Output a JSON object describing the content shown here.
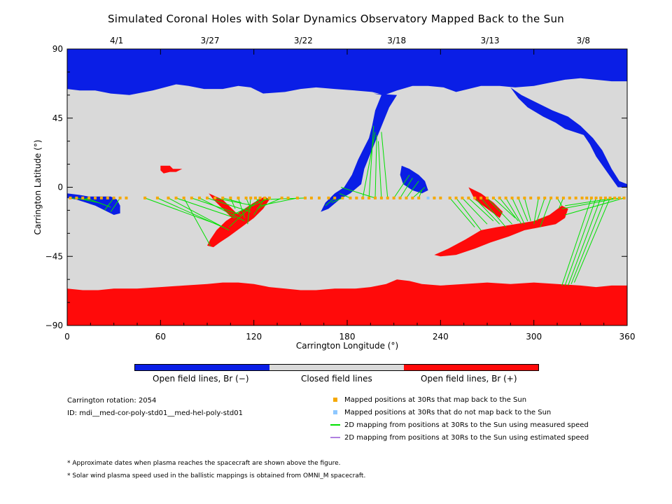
{
  "chart_data": {
    "type": "map",
    "title": "Simulated Coronal Holes with Solar Dynamics Observatory Mapped Back to the Sun",
    "xlabel": "Carrington Longitude (°)",
    "ylabel": "Carrington Latitude (°)",
    "xlim": [
      0,
      360
    ],
    "ylim": [
      -90,
      90
    ],
    "x_ticks": [
      0,
      60,
      120,
      180,
      240,
      300,
      360
    ],
    "y_ticks": [
      90,
      45,
      0,
      -45,
      -90
    ],
    "y_tick_labels": [
      "90",
      "45",
      "0",
      "−45",
      "−90"
    ],
    "top_axis_dates": [
      {
        "label": "4/1",
        "lon": 30
      },
      {
        "label": "3/27",
        "lon": 90
      },
      {
        "label": "3/22",
        "lon": 150
      },
      {
        "label": "3/18",
        "lon": 210
      },
      {
        "label": "3/13",
        "lon": 270
      },
      {
        "label": "3/8",
        "lon": 330
      }
    ],
    "colors": {
      "open_negative": "#0a1ee6",
      "closed": "#d9d9d9",
      "open_positive": "#ff0a0a",
      "mapped": "#f5a800",
      "unmapped": "#8ec8ff",
      "measured_line": "#00e000",
      "estimated_line": "#b080e0"
    },
    "regions": {
      "north_polar_boundary": [
        [
          0,
          64
        ],
        [
          8,
          63
        ],
        [
          18,
          63
        ],
        [
          28,
          61
        ],
        [
          40,
          60
        ],
        [
          55,
          63
        ],
        [
          70,
          67
        ],
        [
          78,
          66
        ],
        [
          88,
          64
        ],
        [
          100,
          64
        ],
        [
          110,
          66
        ],
        [
          118,
          65
        ],
        [
          126,
          61
        ],
        [
          140,
          62
        ],
        [
          150,
          64
        ],
        [
          160,
          65
        ],
        [
          172,
          64
        ],
        [
          185,
          63
        ],
        [
          196,
          62
        ],
        [
          204,
          60
        ],
        [
          212,
          63
        ],
        [
          222,
          66
        ],
        [
          232,
          66
        ],
        [
          242,
          65
        ],
        [
          250,
          62
        ],
        [
          258,
          64
        ],
        [
          266,
          66
        ],
        [
          278,
          66
        ],
        [
          288,
          65
        ],
        [
          300,
          66
        ],
        [
          310,
          68
        ],
        [
          320,
          70
        ],
        [
          330,
          71
        ],
        [
          340,
          70
        ],
        [
          350,
          69
        ],
        [
          360,
          69
        ]
      ],
      "south_polar_boundary": [
        [
          0,
          -66
        ],
        [
          10,
          -67
        ],
        [
          20,
          -67
        ],
        [
          30,
          -66
        ],
        [
          45,
          -66
        ],
        [
          60,
          -65
        ],
        [
          75,
          -64
        ],
        [
          90,
          -63
        ],
        [
          100,
          -62
        ],
        [
          110,
          -62
        ],
        [
          120,
          -63
        ],
        [
          130,
          -65
        ],
        [
          140,
          -66
        ],
        [
          150,
          -67
        ],
        [
          160,
          -67
        ],
        [
          172,
          -66
        ],
        [
          185,
          -66
        ],
        [
          195,
          -65
        ],
        [
          205,
          -63
        ],
        [
          212,
          -60
        ],
        [
          220,
          -61
        ],
        [
          228,
          -63
        ],
        [
          240,
          -64
        ],
        [
          255,
          -63
        ],
        [
          270,
          -62
        ],
        [
          285,
          -63
        ],
        [
          300,
          -62
        ],
        [
          315,
          -63
        ],
        [
          330,
          -64
        ],
        [
          340,
          -65
        ],
        [
          350,
          -64
        ],
        [
          360,
          -64
        ]
      ],
      "negative_holes": [
        [
          [
            197,
            61
          ],
          [
            202,
            60
          ],
          [
            198,
            50
          ],
          [
            196,
            40
          ],
          [
            194,
            32
          ],
          [
            190,
            24
          ],
          [
            187,
            18
          ],
          [
            183,
            8
          ],
          [
            178,
            0
          ],
          [
            172,
            -4
          ],
          [
            166,
            -10
          ],
          [
            163,
            -16
          ],
          [
            168,
            -14
          ],
          [
            175,
            -8
          ],
          [
            182,
            -4
          ],
          [
            189,
            2
          ],
          [
            191,
            12
          ],
          [
            195,
            22
          ],
          [
            199,
            32
          ],
          [
            203,
            42
          ],
          [
            207,
            52
          ],
          [
            212,
            60
          ]
        ],
        [
          [
            285,
            65
          ],
          [
            292,
            60
          ],
          [
            300,
            56
          ],
          [
            312,
            50
          ],
          [
            322,
            46
          ],
          [
            330,
            40
          ],
          [
            338,
            32
          ],
          [
            344,
            24
          ],
          [
            350,
            12
          ],
          [
            355,
            4
          ],
          [
            360,
            2
          ],
          [
            360,
            0
          ],
          [
            354,
            0
          ],
          [
            347,
            10
          ],
          [
            340,
            20
          ],
          [
            336,
            28
          ],
          [
            332,
            34
          ],
          [
            326,
            36
          ],
          [
            320,
            38
          ],
          [
            314,
            42
          ],
          [
            306,
            46
          ],
          [
            296,
            52
          ],
          [
            290,
            58
          ]
        ],
        [
          [
            0,
            -4
          ],
          [
            8,
            -5
          ],
          [
            14,
            -6
          ],
          [
            22,
            -6
          ],
          [
            28,
            -6
          ],
          [
            32,
            -8
          ],
          [
            34,
            -12
          ],
          [
            34,
            -17
          ],
          [
            30,
            -18
          ],
          [
            24,
            -15
          ],
          [
            18,
            -12
          ],
          [
            12,
            -10
          ],
          [
            6,
            -8
          ],
          [
            0,
            -7
          ]
        ],
        [
          [
            215,
            14
          ],
          [
            220,
            12
          ],
          [
            226,
            8
          ],
          [
            230,
            4
          ],
          [
            232,
            -2
          ],
          [
            228,
            -4
          ],
          [
            222,
            -2
          ],
          [
            216,
            2
          ],
          [
            214,
            8
          ]
        ]
      ],
      "positive_holes": [
        [
          [
            90,
            -38
          ],
          [
            92,
            -34
          ],
          [
            96,
            -28
          ],
          [
            102,
            -22
          ],
          [
            108,
            -18
          ],
          [
            114,
            -14
          ],
          [
            120,
            -10
          ],
          [
            127,
            -6
          ],
          [
            130,
            -8
          ],
          [
            126,
            -14
          ],
          [
            120,
            -20
          ],
          [
            112,
            -26
          ],
          [
            104,
            -32
          ],
          [
            98,
            -36
          ],
          [
            94,
            -39
          ]
        ],
        [
          [
            91,
            -4
          ],
          [
            100,
            -8
          ],
          [
            106,
            -14
          ],
          [
            110,
            -18
          ],
          [
            108,
            -22
          ],
          [
            100,
            -14
          ],
          [
            94,
            -8
          ]
        ],
        [
          [
            236,
            -44
          ],
          [
            245,
            -40
          ],
          [
            256,
            -34
          ],
          [
            266,
            -28
          ],
          [
            276,
            -26
          ],
          [
            288,
            -24
          ],
          [
            300,
            -22
          ],
          [
            310,
            -18
          ],
          [
            318,
            -12
          ],
          [
            322,
            -14
          ],
          [
            320,
            -20
          ],
          [
            314,
            -24
          ],
          [
            304,
            -26
          ],
          [
            294,
            -28
          ],
          [
            284,
            -32
          ],
          [
            272,
            -36
          ],
          [
            262,
            -40
          ],
          [
            250,
            -44
          ],
          [
            240,
            -45
          ]
        ],
        [
          [
            258,
            0
          ],
          [
            266,
            -4
          ],
          [
            274,
            -10
          ],
          [
            280,
            -16
          ],
          [
            278,
            -20
          ],
          [
            270,
            -14
          ],
          [
            262,
            -8
          ]
        ],
        [
          [
            60,
            14
          ],
          [
            66,
            14
          ],
          [
            68,
            12
          ],
          [
            74,
            12
          ],
          [
            70,
            10
          ],
          [
            66,
            10
          ],
          [
            62,
            9
          ],
          [
            60,
            11
          ]
        ]
      ]
    },
    "spacecraft_latitude": -7,
    "mapped_longitudes": [
      2,
      6,
      10,
      14,
      18,
      22,
      26,
      30,
      34,
      38,
      50,
      58,
      65,
      70,
      75,
      80,
      85,
      90,
      95,
      100,
      105,
      110,
      115,
      118,
      121,
      124,
      127,
      130,
      138,
      142,
      148,
      153,
      157,
      162,
      168,
      172,
      177,
      182,
      186,
      190,
      194,
      198,
      202,
      206,
      210,
      214,
      218,
      222,
      226,
      236,
      240,
      246,
      250,
      254,
      258,
      262,
      266,
      270,
      274,
      278,
      282,
      286,
      290,
      294,
      298,
      303,
      307,
      311,
      315,
      319,
      323,
      327,
      331,
      334,
      337,
      340,
      343,
      346,
      349,
      352,
      355,
      358
    ],
    "unmapped_longitudes": [
      232
    ],
    "measured_mappings": [
      [
        2,
        -7,
        15,
        -8
      ],
      [
        6,
        -7,
        20,
        -10
      ],
      [
        12,
        -7,
        28,
        -13
      ],
      [
        30,
        -7,
        24,
        -15
      ],
      [
        34,
        -7,
        28,
        -16
      ],
      [
        50,
        -7,
        96,
        -24
      ],
      [
        58,
        -7,
        100,
        -26
      ],
      [
        65,
        -7,
        104,
        -28
      ],
      [
        70,
        -7,
        108,
        -20
      ],
      [
        75,
        -7,
        92,
        -38
      ],
      [
        80,
        -7,
        112,
        -18
      ],
      [
        85,
        -7,
        114,
        -22
      ],
      [
        90,
        -7,
        118,
        -16
      ],
      [
        95,
        -7,
        120,
        -12
      ],
      [
        100,
        -7,
        112,
        -10
      ],
      [
        105,
        -7,
        108,
        -14
      ],
      [
        110,
        -7,
        114,
        -20
      ],
      [
        115,
        -7,
        118,
        -14
      ],
      [
        118,
        -7,
        116,
        -24
      ],
      [
        121,
        -7,
        124,
        -10
      ],
      [
        124,
        -7,
        104,
        -26
      ],
      [
        127,
        -7,
        120,
        -18
      ],
      [
        130,
        -7,
        106,
        -18
      ],
      [
        138,
        -7,
        122,
        -14
      ],
      [
        148,
        -7,
        124,
        -12
      ],
      [
        153,
        -7,
        126,
        -8
      ],
      [
        172,
        -7,
        166,
        -12
      ],
      [
        177,
        -7,
        170,
        -10
      ],
      [
        182,
        -7,
        175,
        -4
      ],
      [
        190,
        -7,
        198,
        36
      ],
      [
        194,
        -7,
        197,
        40
      ],
      [
        198,
        -7,
        199,
        34
      ],
      [
        202,
        -7,
        200,
        30
      ],
      [
        206,
        -7,
        202,
        36
      ],
      [
        210,
        -7,
        220,
        8
      ],
      [
        214,
        -7,
        222,
        6
      ],
      [
        218,
        -7,
        226,
        4
      ],
      [
        222,
        -7,
        230,
        0
      ],
      [
        226,
        -7,
        228,
        -2
      ],
      [
        198,
        -7,
        176,
        0
      ],
      [
        246,
        -7,
        262,
        -26
      ],
      [
        250,
        -7,
        266,
        -28
      ],
      [
        254,
        -7,
        270,
        -24
      ],
      [
        258,
        -7,
        274,
        -22
      ],
      [
        262,
        -7,
        278,
        -24
      ],
      [
        266,
        -7,
        282,
        -26
      ],
      [
        270,
        -7,
        286,
        -24
      ],
      [
        274,
        -7,
        288,
        -20
      ],
      [
        278,
        -7,
        290,
        -22
      ],
      [
        282,
        -7,
        292,
        -24
      ],
      [
        286,
        -7,
        294,
        -24
      ],
      [
        290,
        -7,
        296,
        -22
      ],
      [
        294,
        -7,
        298,
        -22
      ],
      [
        303,
        -7,
        300,
        -24
      ],
      [
        307,
        -7,
        302,
        -22
      ],
      [
        311,
        -7,
        304,
        -26
      ],
      [
        315,
        -7,
        318,
        -12
      ],
      [
        319,
        -7,
        316,
        -14
      ],
      [
        337,
        -7,
        318,
        -64
      ],
      [
        340,
        -7,
        320,
        -64
      ],
      [
        343,
        -7,
        322,
        -64
      ],
      [
        346,
        -7,
        324,
        -63
      ],
      [
        349,
        -7,
        326,
        -62
      ],
      [
        352,
        -7,
        320,
        -12
      ],
      [
        355,
        -7,
        318,
        -14
      ],
      [
        358,
        -7,
        320,
        -18
      ]
    ],
    "colorbar": [
      "Open field lines, Br (−)",
      "Closed field lines",
      "Open field lines, Br (+)"
    ]
  },
  "info": {
    "rotation": "Carrington rotation: 2054",
    "id": "ID: mdi__med-cor-poly-std01__med-hel-poly-std01"
  },
  "legend": [
    {
      "text": "Mapped positions at 30Rs that map back to the Sun",
      "kind": "square",
      "color": "#f5a800"
    },
    {
      "text": "Mapped positions at 30Rs that do not map back to the Sun",
      "kind": "square",
      "color": "#8ec8ff"
    },
    {
      "text": "2D mapping from positions at 30Rs to the Sun using measured speed",
      "kind": "line",
      "color": "#00e000"
    },
    {
      "text": "2D mapping from positions at 30Rs to the Sun using estimated speed",
      "kind": "line",
      "color": "#b080e0"
    }
  ],
  "notes": [
    "* Approximate dates when plasma reaches the spacecraft are shown above the figure.",
    "* Solar wind plasma speed used in the ballistic mappings is obtained from OMNI_M spacecraft."
  ]
}
